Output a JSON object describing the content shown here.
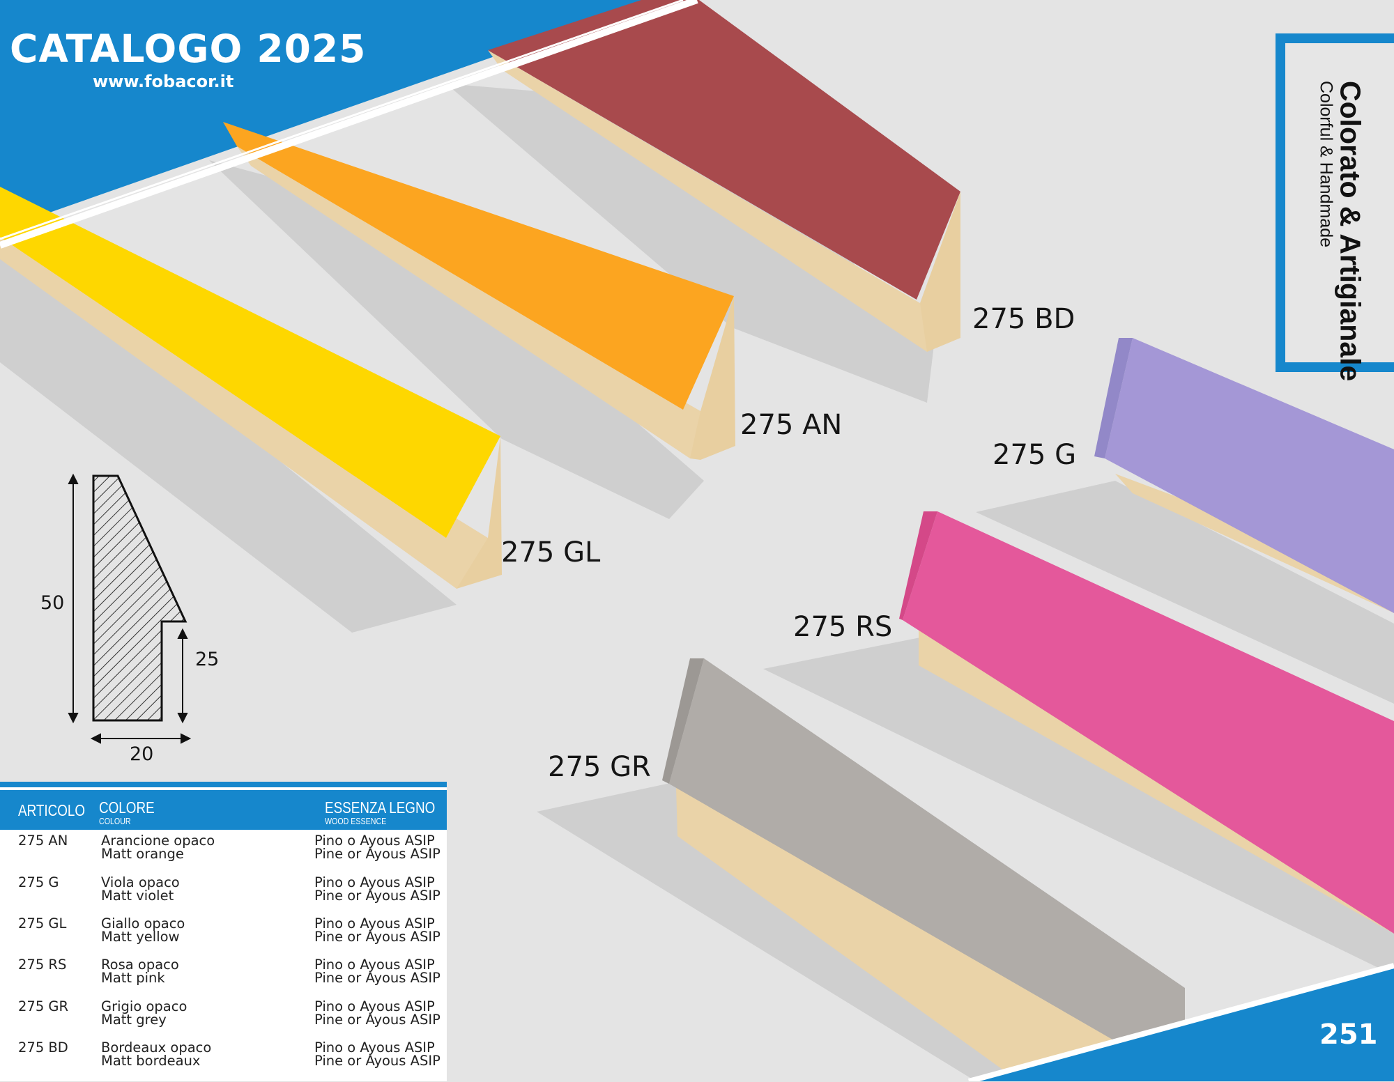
{
  "header": {
    "title": "CATALOGO 2025",
    "url": "www.fobacor.it"
  },
  "side_box": {
    "title": "Colorato & Artigianale",
    "subtitle": "Colorful & Handmade"
  },
  "page_number": "251",
  "colors": {
    "brand_blue": "#1687cc",
    "yellow": "#fdd000",
    "orange": "#fca520",
    "bordeaux": "#a84a4d",
    "violet": "#a497d6",
    "pink": "#e4589b",
    "grey": "#b0aca8",
    "wood": "#ecd5ad"
  },
  "product_labels": [
    "275 BD",
    "275 AN",
    "275 GL",
    "275 G",
    "275 RS",
    "275 GR"
  ],
  "profile_dimensions": {
    "height": "50",
    "rebate": "25",
    "width": "20"
  },
  "table": {
    "headers": {
      "articolo": "ARTICOLO",
      "colore": "COLORE",
      "colore_sub": "COLOUR",
      "essenza": "ESSENZA LEGNO",
      "essenza_sub": "WOOD ESSENCE"
    },
    "rows": [
      {
        "code": "275 AN",
        "color_it": "Arancione opaco",
        "color_en": "Matt orange",
        "wood_it": "Pino o Ayous ASIP",
        "wood_en": "Pine or Ayous ASIP"
      },
      {
        "code": "275 G",
        "color_it": "Viola opaco",
        "color_en": "Matt violet",
        "wood_it": "Pino o Ayous ASIP",
        "wood_en": "Pine or Ayous ASIP"
      },
      {
        "code": "275 GL",
        "color_it": "Giallo opaco",
        "color_en": "Matt yellow",
        "wood_it": "Pino o Ayous ASIP",
        "wood_en": "Pine or Ayous ASIP"
      },
      {
        "code": "275 RS",
        "color_it": "Rosa opaco",
        "color_en": "Matt pink",
        "wood_it": "Pino o Ayous ASIP",
        "wood_en": "Pine or Ayous ASIP"
      },
      {
        "code": "275 GR",
        "color_it": "Grigio opaco",
        "color_en": "Matt grey",
        "wood_it": "Pino o Ayous ASIP",
        "wood_en": "Pine or Ayous ASIP"
      },
      {
        "code": "275 BD",
        "color_it": "Bordeaux opaco",
        "color_en": "Matt bordeaux",
        "wood_it": "Pino o Ayous ASIP",
        "wood_en": "Pine or Ayous ASIP"
      }
    ]
  }
}
